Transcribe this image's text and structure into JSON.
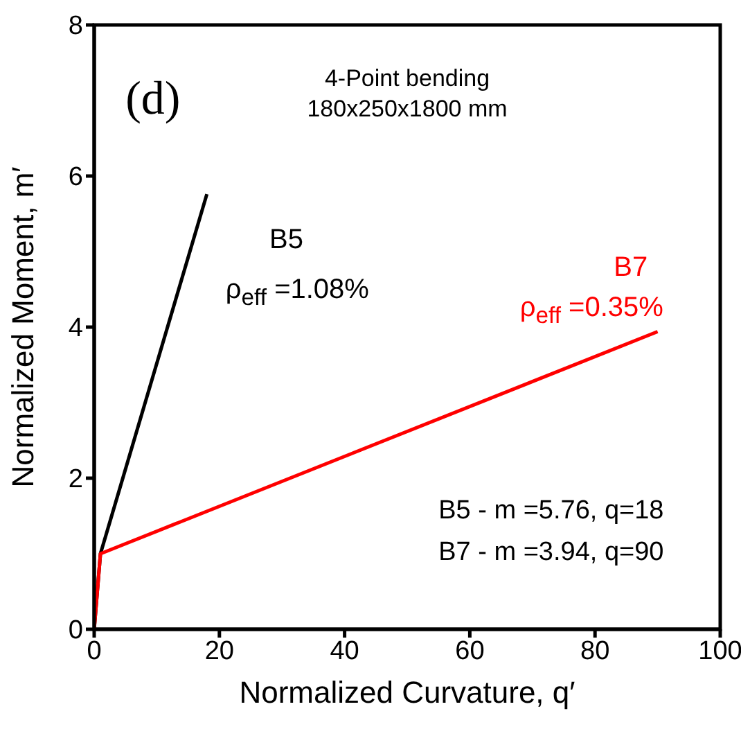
{
  "chart_data": {
    "type": "line",
    "xlabel": "Normalized Curvature, q′",
    "ylabel": "Normalized Moment, m′",
    "xlim": [
      0,
      100
    ],
    "xticks": [
      0,
      20,
      40,
      60,
      80,
      100
    ],
    "ylim": [
      0,
      8
    ],
    "yticks": [
      0,
      2,
      4,
      6,
      8
    ],
    "marker": "none",
    "line_style": "solid",
    "series": [
      {
        "name": "B5",
        "color": "#000000",
        "x": [
          0,
          1,
          18
        ],
        "values": [
          0,
          1,
          5.76
        ]
      },
      {
        "name": "B7",
        "color": "#ff0000",
        "x": [
          0,
          1,
          90
        ],
        "values": [
          0,
          1,
          3.94
        ]
      }
    ],
    "annotations": [
      "(d)",
      "4-Point bending",
      "180x250x1800 mm",
      "ρ$_{eff}$ =1.08%",
      "ρ$_{eff}$ =0.35%",
      "B5 - m =5.76, q=18",
      "B7 - m =3.94, q=90"
    ]
  }
}
